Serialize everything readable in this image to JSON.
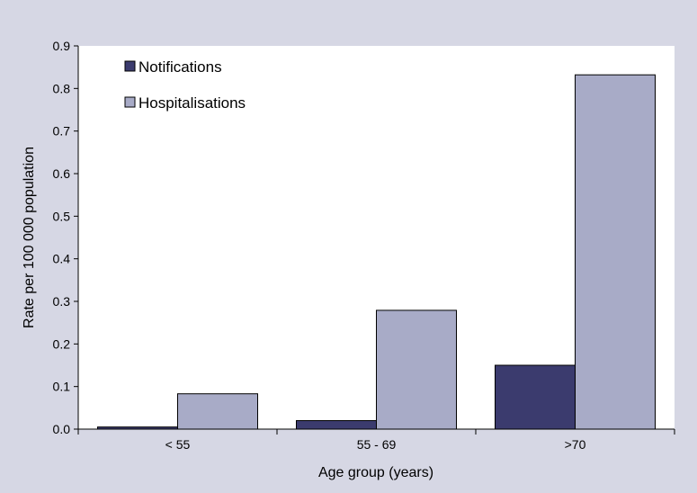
{
  "chart_data": {
    "type": "bar",
    "title": "",
    "xlabel": "Age group (years)",
    "ylabel": "Rate per 100 000 population",
    "categories": [
      "< 55",
      "55 - 69",
      ">70"
    ],
    "series": [
      {
        "name": "Notifications",
        "values": [
          0.005,
          0.02,
          0.15
        ],
        "color": "#3b3b6e"
      },
      {
        "name": "Hospitalisations",
        "values": [
          0.083,
          0.279,
          0.832
        ],
        "color": "#a8abc7"
      }
    ],
    "ylim": [
      0,
      0.9
    ],
    "yticks": [
      "0.0",
      "0.1",
      "0.2",
      "0.3",
      "0.4",
      "0.5",
      "0.6",
      "0.7",
      "0.8",
      "0.9"
    ],
    "grid": false,
    "legend_position": "top-left",
    "plot_background": "#ffffff",
    "page_background": "#d6d7e4"
  }
}
